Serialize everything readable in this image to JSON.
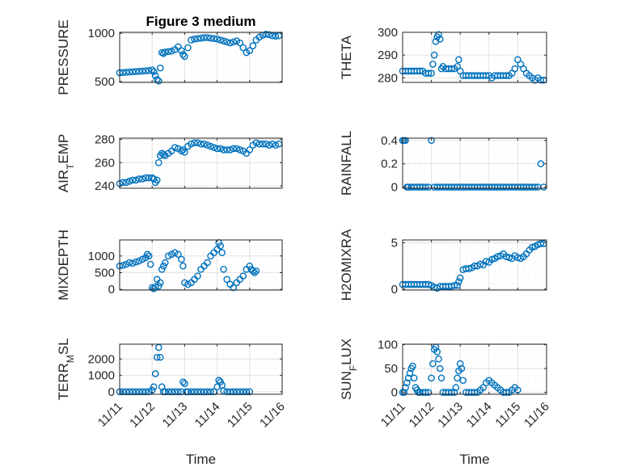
{
  "figure_title": "Figure 3 medium",
  "x_tick_labels": [
    "11/11",
    "11/12",
    "11/13",
    "11/14",
    "11/15",
    "11/16"
  ],
  "x_label": "Time",
  "marker_color": "#0072bd",
  "chart_data": [
    {
      "type": "scatter",
      "title": "Figure 3 medium",
      "ylabel": "PRESSURE",
      "xlim": [
        0,
        5
      ],
      "ylim": [
        490,
        1010
      ],
      "yticks": [
        500,
        1000
      ],
      "ytick_labels": [
        "500",
        "1000"
      ],
      "xticks_shown": false,
      "series": [
        {
          "x": [
            0,
            0.1,
            0.2,
            0.3,
            0.4,
            0.5,
            0.6,
            0.7,
            0.8,
            0.9,
            1.0,
            1.05,
            1.1,
            1.15,
            1.2,
            1.25,
            1.3,
            1.35,
            1.4,
            1.5,
            1.6,
            1.7,
            1.8,
            1.9,
            1.95,
            2.0,
            2.1,
            2.2,
            2.3,
            2.4,
            2.5,
            2.6,
            2.7,
            2.8,
            2.9,
            3.0,
            3.1,
            3.2,
            3.3,
            3.4,
            3.5,
            3.6,
            3.7,
            3.8,
            3.9,
            4.0,
            4.1,
            4.2,
            4.3,
            4.4,
            4.5,
            4.6,
            4.7,
            4.8,
            4.9
          ],
          "y": [
            590,
            592,
            595,
            598,
            600,
            603,
            605,
            607,
            610,
            613,
            620,
            600,
            560,
            520,
            505,
            640,
            800,
            790,
            805,
            810,
            815,
            830,
            860,
            820,
            780,
            760,
            850,
            930,
            940,
            945,
            950,
            955,
            955,
            950,
            945,
            940,
            930,
            920,
            910,
            900,
            910,
            920,
            900,
            850,
            800,
            820,
            870,
            930,
            960,
            980,
            990,
            985,
            975,
            970,
            975
          ]
        }
      ]
    },
    {
      "type": "scatter",
      "ylabel": "THETA",
      "xlim": [
        0,
        5
      ],
      "ylim": [
        278,
        300
      ],
      "yticks": [
        280,
        290,
        300
      ],
      "ytick_labels": [
        "280",
        "290",
        "300"
      ],
      "xticks_shown": false,
      "series": [
        {
          "x": [
            0,
            0.1,
            0.2,
            0.3,
            0.4,
            0.5,
            0.6,
            0.7,
            0.8,
            0.9,
            1.0,
            1.05,
            1.1,
            1.15,
            1.2,
            1.25,
            1.3,
            1.35,
            1.4,
            1.5,
            1.6,
            1.7,
            1.8,
            1.9,
            1.95,
            2.0,
            2.1,
            2.2,
            2.3,
            2.4,
            2.5,
            2.6,
            2.7,
            2.8,
            2.9,
            3.0,
            3.1,
            3.2,
            3.3,
            3.4,
            3.5,
            3.6,
            3.7,
            3.8,
            3.9,
            4.0,
            4.1,
            4.2,
            4.3,
            4.4,
            4.5,
            4.6,
            4.7,
            4.8,
            4.9
          ],
          "y": [
            283,
            283,
            283,
            283,
            283,
            283,
            283,
            283,
            282,
            282,
            282,
            286,
            290,
            296,
            298,
            299,
            297,
            284,
            285,
            284,
            284,
            284,
            284,
            285,
            288,
            283,
            281,
            281,
            281,
            281,
            281,
            281,
            281,
            281,
            281,
            281,
            280,
            281,
            281,
            281,
            281,
            281,
            281,
            282,
            284,
            288,
            286,
            284,
            282,
            281,
            280,
            279,
            280,
            279,
            279
          ]
        }
      ]
    },
    {
      "type": "scatter",
      "ylabel": "AIR_TEMP",
      "xlim": [
        0,
        5
      ],
      "ylim": [
        238,
        281
      ],
      "yticks": [
        240,
        260,
        280
      ],
      "ytick_labels": [
        "240",
        "260",
        "280"
      ],
      "xticks_shown": false,
      "series": [
        {
          "x": [
            0,
            0.1,
            0.2,
            0.3,
            0.4,
            0.5,
            0.6,
            0.7,
            0.8,
            0.9,
            1.0,
            1.05,
            1.1,
            1.15,
            1.2,
            1.25,
            1.3,
            1.35,
            1.4,
            1.5,
            1.6,
            1.7,
            1.8,
            1.9,
            1.95,
            2.0,
            2.1,
            2.2,
            2.3,
            2.4,
            2.5,
            2.6,
            2.7,
            2.8,
            2.9,
            3.0,
            3.1,
            3.2,
            3.3,
            3.4,
            3.5,
            3.6,
            3.7,
            3.8,
            3.9,
            4.0,
            4.1,
            4.2,
            4.3,
            4.4,
            4.5,
            4.6,
            4.7,
            4.8,
            4.9
          ],
          "y": [
            242,
            243,
            243,
            244,
            245,
            245,
            246,
            246,
            247,
            247,
            247,
            246,
            243,
            245,
            260,
            266,
            268,
            267,
            266,
            268,
            270,
            273,
            272,
            270,
            271,
            269,
            274,
            276,
            277,
            277,
            276,
            276,
            275,
            274,
            273,
            272,
            272,
            271,
            271,
            271,
            272,
            272,
            271,
            270,
            268,
            271,
            275,
            277,
            276,
            276,
            276,
            275,
            276,
            275,
            276
          ]
        }
      ]
    },
    {
      "type": "scatter",
      "ylabel": "RAINFALL",
      "xlim": [
        0,
        5
      ],
      "ylim": [
        -0.01,
        0.42
      ],
      "yticks": [
        0,
        0.2,
        0.4
      ],
      "ytick_labels": [
        "0",
        "0.2",
        "0.4"
      ],
      "xticks_shown": false,
      "series": [
        {
          "x": [
            0,
            0.05,
            0.1,
            0.15,
            0.2,
            0.3,
            0.4,
            0.5,
            0.6,
            0.7,
            0.8,
            0.9,
            1.0,
            1.1,
            1.2,
            1.3,
            1.4,
            1.5,
            1.6,
            1.7,
            1.8,
            1.9,
            2.0,
            2.1,
            2.2,
            2.3,
            2.4,
            2.5,
            2.6,
            2.7,
            2.8,
            2.9,
            3.0,
            3.1,
            3.2,
            3.3,
            3.4,
            3.5,
            3.6,
            3.7,
            3.8,
            3.9,
            4.0,
            4.1,
            4.2,
            4.3,
            4.4,
            4.5,
            4.6,
            4.7,
            4.8,
            4.9
          ],
          "y": [
            0.4,
            0.4,
            0.4,
            0,
            0,
            0,
            0,
            0,
            0,
            0,
            0,
            0,
            0.4,
            0,
            0,
            0,
            0,
            0,
            0,
            0,
            0,
            0,
            0,
            0,
            0,
            0,
            0,
            0,
            0,
            0,
            0,
            0,
            0,
            0,
            0,
            0,
            0,
            0,
            0,
            0,
            0,
            0,
            0,
            0,
            0,
            0,
            0,
            0,
            0,
            0,
            0.2,
            0
          ]
        }
      ]
    },
    {
      "type": "scatter",
      "ylabel": "MIXDEPTH",
      "xlim": [
        0,
        5
      ],
      "ylim": [
        -20,
        1480
      ],
      "yticks": [
        0,
        500,
        1000
      ],
      "ytick_labels": [
        "0",
        "500",
        "1000"
      ],
      "xticks_shown": false,
      "series": [
        {
          "x": [
            0,
            0.1,
            0.2,
            0.3,
            0.4,
            0.5,
            0.6,
            0.7,
            0.8,
            0.85,
            0.9,
            0.95,
            1.0,
            1.05,
            1.1,
            1.15,
            1.2,
            1.25,
            1.3,
            1.35,
            1.4,
            1.5,
            1.6,
            1.7,
            1.8,
            1.9,
            1.95,
            2.0,
            2.1,
            2.2,
            2.3,
            2.4,
            2.5,
            2.6,
            2.7,
            2.8,
            2.9,
            3.0,
            3.05,
            3.1,
            3.15,
            3.2,
            3.3,
            3.4,
            3.5,
            3.6,
            3.7,
            3.8,
            3.9,
            4.0,
            4.05,
            4.1,
            4.15,
            4.2
          ],
          "y": [
            700,
            720,
            750,
            800,
            780,
            820,
            850,
            900,
            950,
            1050,
            1000,
            750,
            50,
            20,
            80,
            300,
            100,
            200,
            600,
            700,
            800,
            1000,
            1050,
            1100,
            1050,
            900,
            700,
            200,
            150,
            200,
            300,
            400,
            600,
            700,
            800,
            1000,
            1100,
            1200,
            1400,
            1300,
            1100,
            600,
            300,
            150,
            50,
            200,
            300,
            400,
            600,
            700,
            600,
            550,
            500,
            550
          ]
        }
      ]
    },
    {
      "type": "scatter",
      "ylabel": "H2OMIXRA",
      "xlim": [
        0,
        5
      ],
      "ylim": [
        -0.1,
        5.3
      ],
      "yticks": [
        0,
        5
      ],
      "ytick_labels": [
        "0",
        "5"
      ],
      "xticks_shown": false,
      "series": [
        {
          "x": [
            0,
            0.1,
            0.2,
            0.3,
            0.4,
            0.5,
            0.6,
            0.7,
            0.8,
            0.9,
            1.0,
            1.1,
            1.2,
            1.3,
            1.4,
            1.5,
            1.6,
            1.7,
            1.8,
            1.9,
            1.95,
            2.0,
            2.1,
            2.2,
            2.3,
            2.4,
            2.5,
            2.6,
            2.7,
            2.8,
            2.9,
            3.0,
            3.1,
            3.2,
            3.3,
            3.4,
            3.5,
            3.6,
            3.7,
            3.8,
            3.9,
            4.0,
            4.1,
            4.2,
            4.3,
            4.4,
            4.5,
            4.6,
            4.7,
            4.8,
            4.9
          ],
          "y": [
            0.5,
            0.5,
            0.5,
            0.5,
            0.5,
            0.5,
            0.5,
            0.5,
            0.5,
            0.5,
            0.4,
            0.2,
            0.1,
            0.3,
            0.3,
            0.3,
            0.3,
            0.3,
            0.4,
            0.4,
            0.8,
            1.2,
            2.1,
            2.2,
            2.2,
            2.3,
            2.5,
            2.5,
            2.7,
            2.6,
            3.0,
            2.9,
            3.2,
            3.3,
            3.5,
            3.6,
            3.8,
            3.5,
            3.4,
            3.3,
            3.6,
            3.4,
            3.3,
            3.5,
            3.8,
            4.2,
            4.5,
            4.6,
            4.8,
            4.9,
            4.9
          ]
        }
      ]
    },
    {
      "type": "scatter",
      "ylabel": "TERR_MSL",
      "xlim": [
        0,
        5
      ],
      "ylim": [
        -150,
        2900
      ],
      "yticks": [
        0,
        1000,
        2000
      ],
      "ytick_labels": [
        "0",
        "1000",
        "2000"
      ],
      "xticks_shown": true,
      "series": [
        {
          "x": [
            0,
            0.1,
            0.2,
            0.3,
            0.4,
            0.5,
            0.6,
            0.7,
            0.8,
            0.9,
            1.0,
            1.05,
            1.1,
            1.15,
            1.2,
            1.25,
            1.3,
            1.35,
            1.4,
            1.5,
            1.6,
            1.7,
            1.8,
            1.9,
            1.95,
            2.0,
            2.05,
            2.1,
            2.2,
            2.3,
            2.4,
            2.5,
            2.6,
            2.7,
            2.8,
            2.9,
            3.0,
            3.05,
            3.1,
            3.15,
            3.2,
            3.3,
            3.4,
            3.5,
            3.6,
            3.7,
            3.8,
            3.9,
            4.0
          ],
          "y": [
            0,
            0,
            0,
            0,
            0,
            0,
            0,
            0,
            0,
            0,
            100,
            300,
            1100,
            2100,
            2700,
            2100,
            300,
            0,
            0,
            0,
            0,
            0,
            0,
            0,
            600,
            500,
            0,
            0,
            0,
            0,
            0,
            0,
            0,
            0,
            0,
            0,
            300,
            700,
            600,
            400,
            50,
            0,
            0,
            0,
            0,
            0,
            0,
            0,
            0
          ]
        }
      ]
    },
    {
      "type": "scatter",
      "ylabel": "SUN_FLUX",
      "xlim": [
        0,
        5
      ],
      "ylim": [
        -4,
        101
      ],
      "yticks": [
        0,
        50,
        100
      ],
      "ytick_labels": [
        "0",
        "50",
        "100"
      ],
      "xticks_shown": true,
      "series": [
        {
          "x": [
            0,
            0.05,
            0.1,
            0.15,
            0.2,
            0.25,
            0.3,
            0.35,
            0.4,
            0.45,
            0.5,
            0.55,
            0.6,
            0.7,
            0.8,
            0.9,
            1.0,
            1.05,
            1.1,
            1.15,
            1.2,
            1.25,
            1.3,
            1.35,
            1.4,
            1.5,
            1.6,
            1.7,
            1.8,
            1.85,
            1.9,
            1.95,
            2.0,
            2.05,
            2.1,
            2.2,
            2.3,
            2.4,
            2.5,
            2.6,
            2.7,
            2.8,
            2.9,
            3.0,
            3.1,
            3.2,
            3.3,
            3.4,
            3.5,
            3.6,
            3.7,
            3.8,
            3.9,
            4.0
          ],
          "y": [
            0,
            0,
            10,
            20,
            30,
            40,
            50,
            55,
            30,
            10,
            5,
            0,
            0,
            0,
            0,
            0,
            30,
            60,
            90,
            95,
            85,
            70,
            50,
            30,
            0,
            0,
            0,
            0,
            0,
            10,
            30,
            45,
            60,
            50,
            25,
            0,
            0,
            0,
            0,
            0,
            5,
            10,
            20,
            25,
            20,
            15,
            10,
            5,
            0,
            0,
            0,
            5,
            10,
            5
          ]
        }
      ]
    }
  ]
}
